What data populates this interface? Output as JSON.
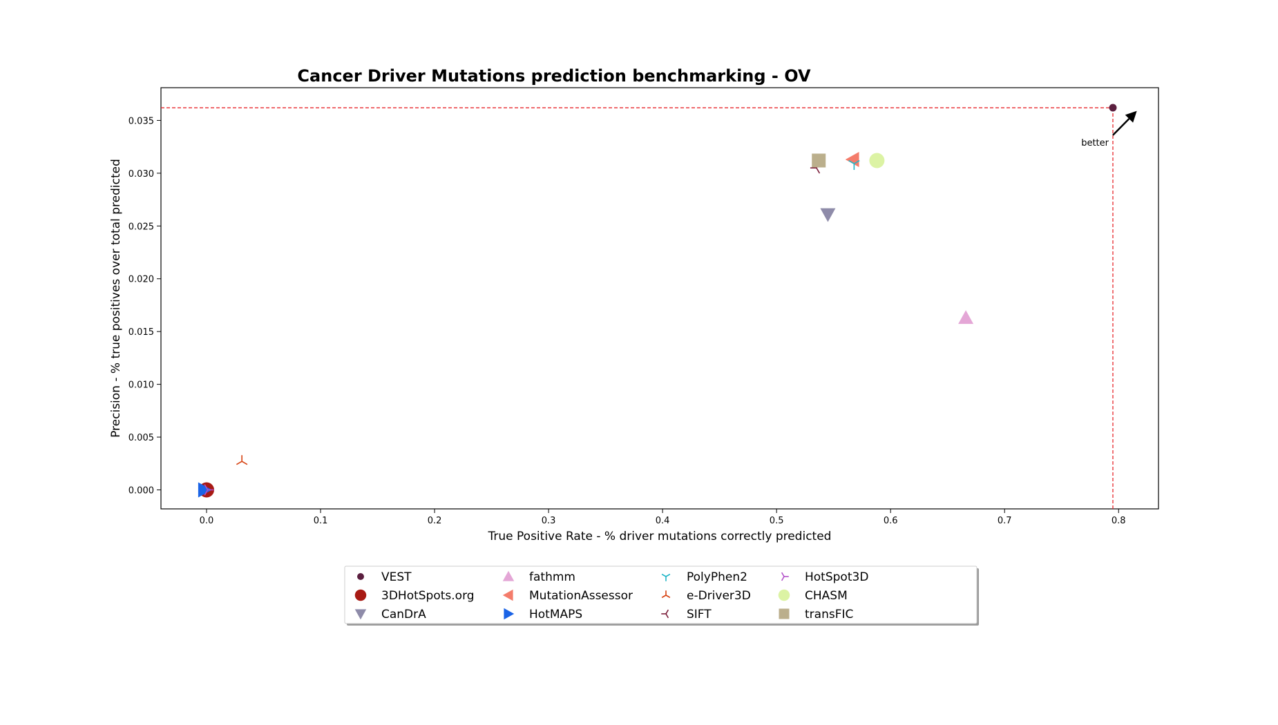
{
  "chart_data": {
    "type": "scatter",
    "title": "Cancer Driver Mutations prediction benchmarking - OV",
    "xlabel": "True Positive Rate - % driver mutations correctly predicted",
    "ylabel": "Precision - % true positives over total predicted",
    "xlim": [
      -0.04,
      0.835
    ],
    "ylim": [
      -0.0018,
      0.0381
    ],
    "xticks": [
      0.0,
      0.1,
      0.2,
      0.3,
      0.4,
      0.5,
      0.6,
      0.7,
      0.8
    ],
    "xtick_labels": [
      "0.0",
      "0.1",
      "0.2",
      "0.3",
      "0.4",
      "0.5",
      "0.6",
      "0.7",
      "0.8"
    ],
    "yticks": [
      0.0,
      0.005,
      0.01,
      0.015,
      0.02,
      0.025,
      0.03,
      0.035
    ],
    "ytick_labels": [
      "0.000",
      "0.005",
      "0.010",
      "0.015",
      "0.020",
      "0.025",
      "0.030",
      "0.035"
    ],
    "grid": false,
    "legend_position": "bottom-center",
    "series": [
      {
        "name": "VEST",
        "x": 0.795,
        "y": 0.0362,
        "color": "#5b1f3f",
        "marker": "circle-small"
      },
      {
        "name": "3DHotSpots.org",
        "x": 0.0,
        "y": 0.0,
        "color": "#a81a14",
        "marker": "circle"
      },
      {
        "name": "CanDrA",
        "x": 0.545,
        "y": 0.0261,
        "color": "#8e8ba9",
        "marker": "triangle-down"
      },
      {
        "name": "fathmm",
        "x": 0.666,
        "y": 0.0163,
        "color": "#e4a6d6",
        "marker": "triangle-up"
      },
      {
        "name": "MutationAssessor",
        "x": 0.567,
        "y": 0.0313,
        "color": "#f47c6b",
        "marker": "triangle-left"
      },
      {
        "name": "HotMAPS",
        "x": -0.002,
        "y": 0.0,
        "color": "#1a63e6",
        "marker": "triangle-right"
      },
      {
        "name": "PolyPhen2",
        "x": 0.568,
        "y": 0.0309,
        "color": "#21b6c7",
        "marker": "tri-down"
      },
      {
        "name": "e-Driver3D",
        "x": 0.031,
        "y": 0.0027,
        "color": "#d6400f",
        "marker": "tri-up"
      },
      {
        "name": "SIFT",
        "x": 0.535,
        "y": 0.0305,
        "color": "#7a1c38",
        "marker": "tri-left"
      },
      {
        "name": "HotSpot3D",
        "x": 0.001,
        "y": 0.0,
        "color": "#b251c9",
        "marker": "tri-right"
      },
      {
        "name": "CHASM",
        "x": 0.588,
        "y": 0.0312,
        "color": "#dcf3a4",
        "marker": "circle"
      },
      {
        "name": "transFIC",
        "x": 0.537,
        "y": 0.0312,
        "color": "#bbaf8c",
        "marker": "square"
      }
    ],
    "reference_lines": {
      "x": 0.795,
      "y": 0.0362,
      "color": "#e8262b",
      "style": "dashed"
    },
    "annotation": {
      "text": "better",
      "arrow_from": [
        0.795,
        0.0336
      ],
      "arrow_to": [
        0.816,
        0.0359
      ]
    }
  }
}
